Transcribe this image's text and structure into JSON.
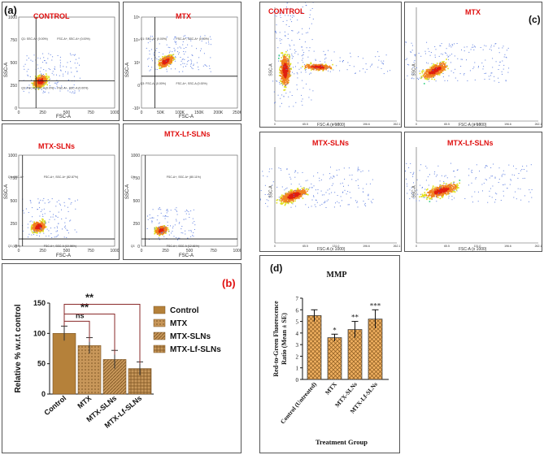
{
  "panel_labels": {
    "a": "(a)",
    "b": "(b)",
    "c": "(c)",
    "d": "(d)"
  },
  "flow_a": [
    {
      "title": "CONTROL",
      "xlabel": "FSC-A",
      "ylabel": "SSC-A",
      "xticks": [
        "0",
        "250",
        "500",
        "750",
        "1000"
      ],
      "yticks": [
        "0",
        "250",
        "500",
        "750",
        "1000"
      ],
      "gates": [
        "Q1: SSC-A+ (0.00%)",
        "FSC-A+, SSC-A+ (0.00%)",
        "Q3: FSC-A-SSC-A (0.0%)",
        "FSC-A+, SSC-A (0.00%)"
      ]
    },
    {
      "title": "MTX",
      "xlabel": "FSC-A",
      "ylabel": "SSC-A",
      "xticks": [
        "0",
        "50K",
        "100K",
        "150K",
        "200K",
        "250K"
      ],
      "yticks": [
        "-10³",
        "0",
        "10³",
        "10⁴",
        "10⁵"
      ],
      "gates": [
        "Q1: SSC-A+ (0.00%)",
        "FSC-A+, SSC-A+ (0.00%)",
        "Q3: FSC-A- (0.00%)",
        "FSC-A+, SSC-A (0.00%)"
      ]
    },
    {
      "title": "MTX-SLNs",
      "xlabel": "FSC-A",
      "ylabel": "SSC-A",
      "xticks": [
        "0",
        "250",
        "500",
        "750",
        "1000"
      ],
      "yticks": [
        "0",
        "250",
        "500",
        "750",
        "1000"
      ],
      "gates": [
        "Q1: SSC-A+",
        "FSC-A+, SSC-A+ (82.87%)",
        "Q3 (18%)",
        "FSC-A+, SSC-A (10.96%)"
      ]
    },
    {
      "title": "MTX-Lf-SLNs",
      "xlabel": "FSC-A",
      "ylabel": "SSC-A",
      "xticks": [
        "0",
        "250",
        "500",
        "750",
        "1000"
      ],
      "yticks": [
        "0",
        "250",
        "500",
        "750",
        "1000"
      ],
      "gates": [
        "Q1",
        "FSC-A+, SSC-A+ (80.11%)",
        "Q3",
        "FSC-A+, SSC-A (12.61%)"
      ]
    }
  ],
  "flow_c": [
    {
      "title": "CONTROL",
      "xlabel": "FSC-A (x 1000)",
      "ylabel": "SSC-A",
      "xticks": [
        "0",
        "65.5",
        "131.0",
        "196.6",
        "262.1"
      ]
    },
    {
      "title": "MTX",
      "xlabel": "FSC-A (x 1000)",
      "ylabel": "SSC-A",
      "xticks": [
        "0",
        "65.5",
        "131.0",
        "196.6",
        "262.1"
      ]
    },
    {
      "title": "MTX-SLNs",
      "xlabel": "FSC-A (x 1000)",
      "ylabel": "SSC-A",
      "xticks": [
        "0",
        "65.5",
        "131.0",
        "196.6",
        "262.1"
      ]
    },
    {
      "title": "MTX-Lf-SLNs",
      "xlabel": "FSC-A (x 1000)",
      "ylabel": "SSC-A",
      "xticks": [
        "0",
        "65.5",
        "131.0",
        "196.6",
        "262.1"
      ]
    }
  ],
  "colors": {
    "bar_b": "#b5813a",
    "bar_b_dark": "#7a5220",
    "bar_d": "#e09a4a",
    "title_red": "#e01010"
  },
  "chart_data": [
    {
      "type": "bar",
      "panel": "b",
      "categories": [
        "Control",
        "MTX",
        "MTX-SLNs",
        "MTX-Lf-SLNs"
      ],
      "values": [
        100,
        80,
        57,
        42
      ],
      "errors": [
        12,
        13,
        15,
        11
      ],
      "ylabel": "Relative % w.r.t control",
      "ylim": [
        0,
        150
      ],
      "yticks": [
        "0",
        "50",
        "100",
        "150"
      ],
      "legend": [
        "Control",
        "MTX",
        "MTX-SLNs",
        "MTX-Lf-SLNs"
      ],
      "annotations": [
        "ns",
        "**",
        "**"
      ]
    },
    {
      "type": "bar",
      "panel": "d",
      "title": "MMP",
      "categories": [
        "Control (Untreated)",
        "MTX",
        "MTX-SLNs",
        "MTX-Lf-SLNs"
      ],
      "values": [
        5.5,
        3.6,
        4.3,
        5.2
      ],
      "errors": [
        0.5,
        0.3,
        0.7,
        0.8
      ],
      "significance": [
        "",
        "*",
        "**",
        "***"
      ],
      "ylabel": "Red-to-Green Fluorescence Ratio (Mean ± SE)",
      "xlabel": "Treatment Group",
      "ylim": [
        0,
        7
      ],
      "yticks": [
        "0",
        "1",
        "2",
        "3",
        "4",
        "5",
        "6",
        "7"
      ]
    }
  ]
}
